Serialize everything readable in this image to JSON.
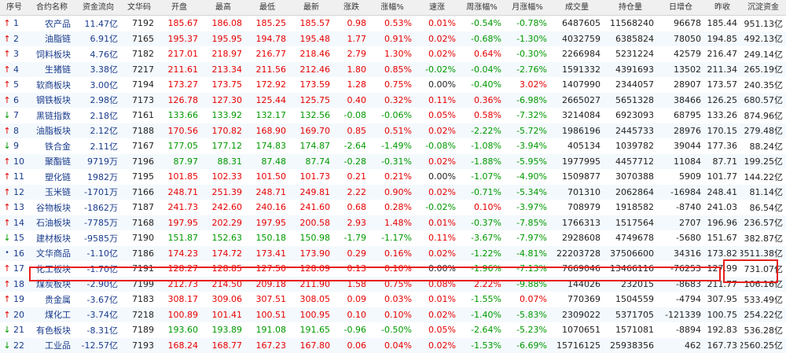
{
  "headers": [
    "序号",
    "合约名称",
    "资金流向",
    "文华码",
    "开盘",
    "最高",
    "最低",
    "最新",
    "涨跌",
    "涨幅%",
    "速涨",
    "周涨幅%",
    "月涨幅%",
    "成交量",
    "持仓量",
    "日增仓",
    "昨收",
    "沉淀资金"
  ],
  "colors": {
    "up": "#e60000",
    "down": "#009900",
    "neutral": "#222222",
    "name": "#1a3c8c",
    "highlight": "#e8201c"
  },
  "rows": [
    {
      "seq": "1",
      "dir": "up",
      "name": "农产品",
      "flow": "11.47亿",
      "code": "7192",
      "open": "185.67",
      "high": "186.08",
      "low": "185.25",
      "last": "185.57",
      "chg": "0.98",
      "pct": "0.53%",
      "speed": "0.01%",
      "week": "-0.54%",
      "month": "-0.78%",
      "vol": "6487605",
      "oi": "11568240",
      "oichg": "96678",
      "prev": "185.44",
      "fund": "951.13亿"
    },
    {
      "seq": "2",
      "dir": "up",
      "name": "油脂链",
      "flow": "6.91亿",
      "code": "7165",
      "open": "195.37",
      "high": "195.95",
      "low": "194.78",
      "last": "195.48",
      "chg": "1.77",
      "pct": "0.91%",
      "speed": "0.02%",
      "week": "-0.68%",
      "month": "-1.30%",
      "vol": "4032759",
      "oi": "6385824",
      "oichg": "78050",
      "prev": "194.85",
      "fund": "492.13亿"
    },
    {
      "seq": "3",
      "dir": "up",
      "name": "饲料板块",
      "flow": "4.76亿",
      "code": "7182",
      "open": "217.01",
      "high": "218.97",
      "low": "216.77",
      "last": "218.46",
      "chg": "2.79",
      "pct": "1.30%",
      "speed": "0.02%",
      "week": "0.64%",
      "month": "-0.30%",
      "vol": "2266984",
      "oi": "5231224",
      "oichg": "42579",
      "prev": "216.47",
      "fund": "249.14亿"
    },
    {
      "seq": "4",
      "dir": "up",
      "name": "生猪链",
      "flow": "3.38亿",
      "code": "7217",
      "open": "211.61",
      "high": "213.34",
      "low": "211.56",
      "last": "212.46",
      "chg": "1.80",
      "pct": "0.85%",
      "speed": "-0.02%",
      "week": "-0.04%",
      "month": "-2.76%",
      "vol": "1591332",
      "oi": "4391693",
      "oichg": "13502",
      "prev": "211.34",
      "fund": "265.19亿"
    },
    {
      "seq": "5",
      "dir": "up",
      "name": "软商板块",
      "flow": "3.00亿",
      "code": "7194",
      "open": "173.27",
      "high": "173.75",
      "low": "172.92",
      "last": "173.59",
      "chg": "1.28",
      "pct": "0.75%",
      "speed": "0.00%",
      "week": "-0.40%",
      "month": "3.02%",
      "vol": "1407990",
      "oi": "2344057",
      "oichg": "28907",
      "prev": "173.57",
      "fund": "240.35亿"
    },
    {
      "seq": "6",
      "dir": "up",
      "name": "钢铁板块",
      "flow": "2.98亿",
      "code": "7173",
      "open": "126.78",
      "high": "127.30",
      "low": "125.44",
      "last": "125.75",
      "chg": "0.40",
      "pct": "0.32%",
      "speed": "0.11%",
      "week": "0.36%",
      "month": "-6.98%",
      "vol": "2665027",
      "oi": "5651328",
      "oichg": "38466",
      "prev": "126.25",
      "fund": "680.57亿"
    },
    {
      "seq": "7",
      "dir": "down",
      "name": "黑链指数",
      "flow": "2.18亿",
      "code": "7161",
      "open": "133.66",
      "high": "133.92",
      "low": "132.17",
      "last": "132.56",
      "chg": "-0.08",
      "pct": "-0.06%",
      "speed": "0.05%",
      "week": "0.58%",
      "month": "-7.32%",
      "vol": "3214084",
      "oi": "6923093",
      "oichg": "68795",
      "prev": "133.26",
      "fund": "874.96亿"
    },
    {
      "seq": "8",
      "dir": "up",
      "name": "油脂板块",
      "flow": "2.12亿",
      "code": "7188",
      "open": "170.56",
      "high": "170.82",
      "low": "168.90",
      "last": "169.70",
      "chg": "0.85",
      "pct": "0.51%",
      "speed": "0.02%",
      "week": "-2.22%",
      "month": "-5.72%",
      "vol": "1986196",
      "oi": "2445733",
      "oichg": "28976",
      "prev": "170.15",
      "fund": "279.48亿"
    },
    {
      "seq": "9",
      "dir": "down",
      "name": "铁合金",
      "flow": "2.11亿",
      "code": "7167",
      "open": "177.05",
      "high": "177.12",
      "low": "174.83",
      "last": "174.87",
      "chg": "-2.64",
      "pct": "-1.49%",
      "speed": "-0.08%",
      "week": "-1.08%",
      "month": "-3.94%",
      "vol": "405134",
      "oi": "1039782",
      "oichg": "39044",
      "prev": "177.36",
      "fund": "88.24亿"
    },
    {
      "seq": "10",
      "dir": "up",
      "name": "聚酯链",
      "flow": "9719万",
      "code": "7196",
      "open": "87.97",
      "high": "88.31",
      "low": "87.48",
      "last": "87.74",
      "chg": "-0.28",
      "pct": "-0.31%",
      "speed": "0.02%",
      "week": "-1.88%",
      "month": "-5.95%",
      "vol": "1977995",
      "oi": "4457712",
      "oichg": "11084",
      "prev": "87.71",
      "fund": "199.25亿"
    },
    {
      "seq": "11",
      "dir": "up",
      "name": "塑化链",
      "flow": "1982万",
      "code": "7195",
      "open": "101.85",
      "high": "102.33",
      "low": "101.50",
      "last": "101.73",
      "chg": "0.21",
      "pct": "0.21%",
      "speed": "0.00%",
      "week": "-1.07%",
      "month": "-4.90%",
      "vol": "1509877",
      "oi": "3070388",
      "oichg": "5909",
      "prev": "101.77",
      "fund": "144.22亿"
    },
    {
      "seq": "12",
      "dir": "up",
      "name": "玉米链",
      "flow": "-1701万",
      "code": "7166",
      "open": "248.71",
      "high": "251.39",
      "low": "248.71",
      "last": "249.81",
      "chg": "2.22",
      "pct": "0.90%",
      "speed": "0.02%",
      "week": "-0.71%",
      "month": "-5.34%",
      "vol": "701310",
      "oi": "2062864",
      "oichg": "-16984",
      "prev": "248.41",
      "fund": "81.14亿"
    },
    {
      "seq": "13",
      "dir": "up",
      "name": "谷物板块",
      "flow": "-1862万",
      "code": "7187",
      "open": "241.73",
      "high": "242.60",
      "low": "240.16",
      "last": "241.60",
      "chg": "0.68",
      "pct": "0.28%",
      "speed": "-0.02%",
      "week": "0.10%",
      "month": "-3.97%",
      "vol": "708979",
      "oi": "1918582",
      "oichg": "-8740",
      "prev": "241.03",
      "fund": "86.54亿"
    },
    {
      "seq": "14",
      "dir": "up",
      "name": "石油板块",
      "flow": "-7785万",
      "code": "7168",
      "open": "197.95",
      "high": "202.29",
      "low": "197.95",
      "last": "200.58",
      "chg": "2.93",
      "pct": "1.48%",
      "speed": "0.01%",
      "week": "-0.37%",
      "month": "-7.85%",
      "vol": "1766313",
      "oi": "1517564",
      "oichg": "2707",
      "prev": "196.96",
      "fund": "236.57亿"
    },
    {
      "seq": "15",
      "dir": "down",
      "name": "建材板块",
      "flow": "-9585万",
      "code": "7190",
      "open": "151.87",
      "high": "152.63",
      "low": "150.18",
      "last": "150.98",
      "chg": "-1.79",
      "pct": "-1.17%",
      "speed": "0.11%",
      "week": "-3.67%",
      "month": "-7.97%",
      "vol": "2928608",
      "oi": "4749678",
      "oichg": "-5680",
      "prev": "151.67",
      "fund": "382.87亿"
    },
    {
      "seq": "16",
      "dir": "dot",
      "name": "文华商品",
      "flow": "-1.10亿",
      "code": "7186",
      "open": "174.23",
      "high": "174.72",
      "low": "173.41",
      "last": "173.90",
      "chg": "0.29",
      "pct": "0.16%",
      "speed": "0.02%",
      "week": "-1.22%",
      "month": "-4.81%",
      "vol": "22203728",
      "oi": "37506600",
      "oichg": "34316",
      "prev": "173.82",
      "fund": "3511.38亿"
    },
    {
      "seq": "17",
      "dir": "up",
      "name": "化工板块",
      "flow": "-1.70亿",
      "code": "7191",
      "open": "128.27",
      "high": "128.85",
      "low": "127.50",
      "last": "128.09",
      "chg": "0.13",
      "pct": "0.10%",
      "speed": "0.00%",
      "week": "-1.96%",
      "month": "-7.13%",
      "vol": "7669046",
      "oi": "13466116",
      "oichg": "-76253",
      "prev": "127.99",
      "fund": "731.07亿"
    },
    {
      "seq": "18",
      "dir": "up",
      "name": "煤炭板块",
      "flow": "-2.90亿",
      "code": "7199",
      "open": "212.73",
      "high": "214.50",
      "low": "209.18",
      "last": "211.90",
      "chg": "1.58",
      "pct": "0.75%",
      "speed": "0.08%",
      "week": "2.22%",
      "month": "-9.88%",
      "vol": "144026",
      "oi": "232015",
      "oichg": "-8683",
      "prev": "211.77",
      "fund": "106.16亿"
    },
    {
      "seq": "19",
      "dir": "up",
      "name": "贵金属",
      "flow": "-3.67亿",
      "code": "7183",
      "open": "308.17",
      "high": "309.06",
      "low": "307.51",
      "last": "308.05",
      "chg": "0.09",
      "pct": "0.03%",
      "speed": "0.01%",
      "week": "-1.55%",
      "month": "0.07%",
      "vol": "770369",
      "oi": "1504559",
      "oichg": "-4794",
      "prev": "307.95",
      "fund": "533.49亿"
    },
    {
      "seq": "20",
      "dir": "up",
      "name": "煤化工",
      "flow": "-3.74亿",
      "code": "7218",
      "open": "100.89",
      "high": "101.41",
      "low": "100.51",
      "last": "100.95",
      "chg": "0.10",
      "pct": "0.10%",
      "speed": "0.02%",
      "week": "-1.40%",
      "month": "-5.83%",
      "vol": "2309022",
      "oi": "5371705",
      "oichg": "-121339",
      "prev": "100.75",
      "fund": "254.22亿"
    },
    {
      "seq": "21",
      "dir": "down",
      "name": "有色板块",
      "flow": "-8.31亿",
      "code": "7189",
      "open": "193.60",
      "high": "193.89",
      "low": "191.08",
      "last": "191.65",
      "chg": "-0.96",
      "pct": "-0.50%",
      "speed": "0.05%",
      "week": "-2.64%",
      "month": "-5.23%",
      "vol": "1070651",
      "oi": "1571081",
      "oichg": "-8894",
      "prev": "192.83",
      "fund": "536.28亿"
    },
    {
      "seq": "22",
      "dir": "down",
      "name": "工业品",
      "flow": "-12.57亿",
      "code": "7193",
      "open": "168.24",
      "high": "168.77",
      "low": "167.23",
      "last": "167.80",
      "chg": "0.06",
      "pct": "0.04%",
      "speed": "0.02%",
      "week": "-1.53%",
      "month": "-6.69%",
      "vol": "15716125",
      "oi": "25938356",
      "oichg": "462",
      "prev": "167.73",
      "fund": "2560.25亿"
    }
  ]
}
